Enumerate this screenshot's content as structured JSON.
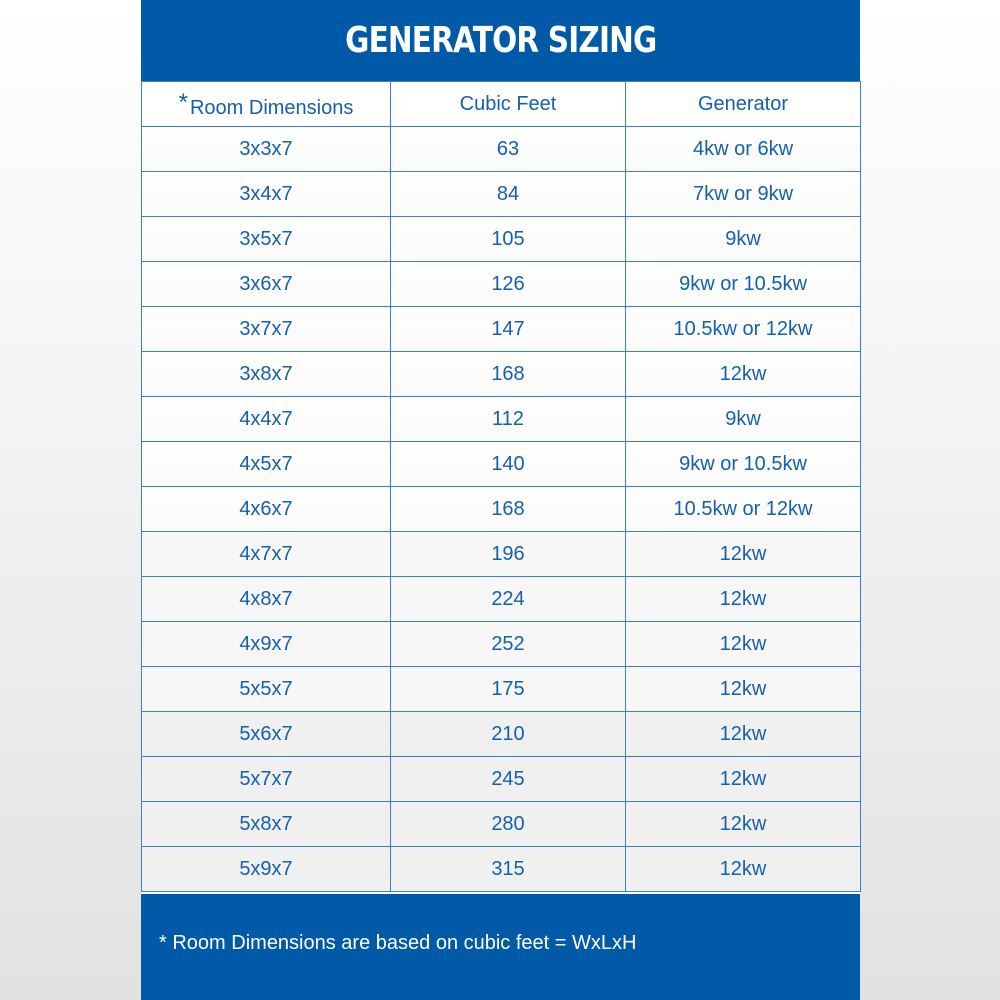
{
  "title": "GENERATOR SIZING",
  "headers": {
    "asterisk": "*",
    "room": "Room Dimensions",
    "cubic": "Cubic Feet",
    "generator": "Generator"
  },
  "rows": [
    {
      "room": "3x3x7",
      "cubic": "63",
      "generator": "4kw or 6kw"
    },
    {
      "room": "3x4x7",
      "cubic": "84",
      "generator": "7kw or 9kw"
    },
    {
      "room": "3x5x7",
      "cubic": "105",
      "generator": "9kw"
    },
    {
      "room": "3x6x7",
      "cubic": "126",
      "generator": "9kw or 10.5kw"
    },
    {
      "room": "3x7x7",
      "cubic": "147",
      "generator": "10.5kw or 12kw"
    },
    {
      "room": "3x8x7",
      "cubic": "168",
      "generator": "12kw"
    },
    {
      "room": "4x4x7",
      "cubic": "112",
      "generator": "9kw"
    },
    {
      "room": "4x5x7",
      "cubic": "140",
      "generator": "9kw or 10.5kw"
    },
    {
      "room": "4x6x7",
      "cubic": "168",
      "generator": "10.5kw or 12kw"
    },
    {
      "room": "4x7x7",
      "cubic": "196",
      "generator": "12kw"
    },
    {
      "room": "4x8x7",
      "cubic": "224",
      "generator": "12kw"
    },
    {
      "room": "4x9x7",
      "cubic": "252",
      "generator": "12kw"
    },
    {
      "room": "5x5x7",
      "cubic": "175",
      "generator": "12kw"
    },
    {
      "room": "5x6x7",
      "cubic": "210",
      "generator": "12kw"
    },
    {
      "room": "5x7x7",
      "cubic": "245",
      "generator": "12kw"
    },
    {
      "room": "5x8x7",
      "cubic": "280",
      "generator": "12kw"
    },
    {
      "room": "5x9x7",
      "cubic": "315",
      "generator": "12kw"
    }
  ],
  "footer": {
    "asterisk": "*",
    "note": "Room Dimensions are based on cubic feet = WxLxH"
  },
  "colors": {
    "brand_blue": "#005aa8",
    "text_blue": "#1560ad"
  }
}
